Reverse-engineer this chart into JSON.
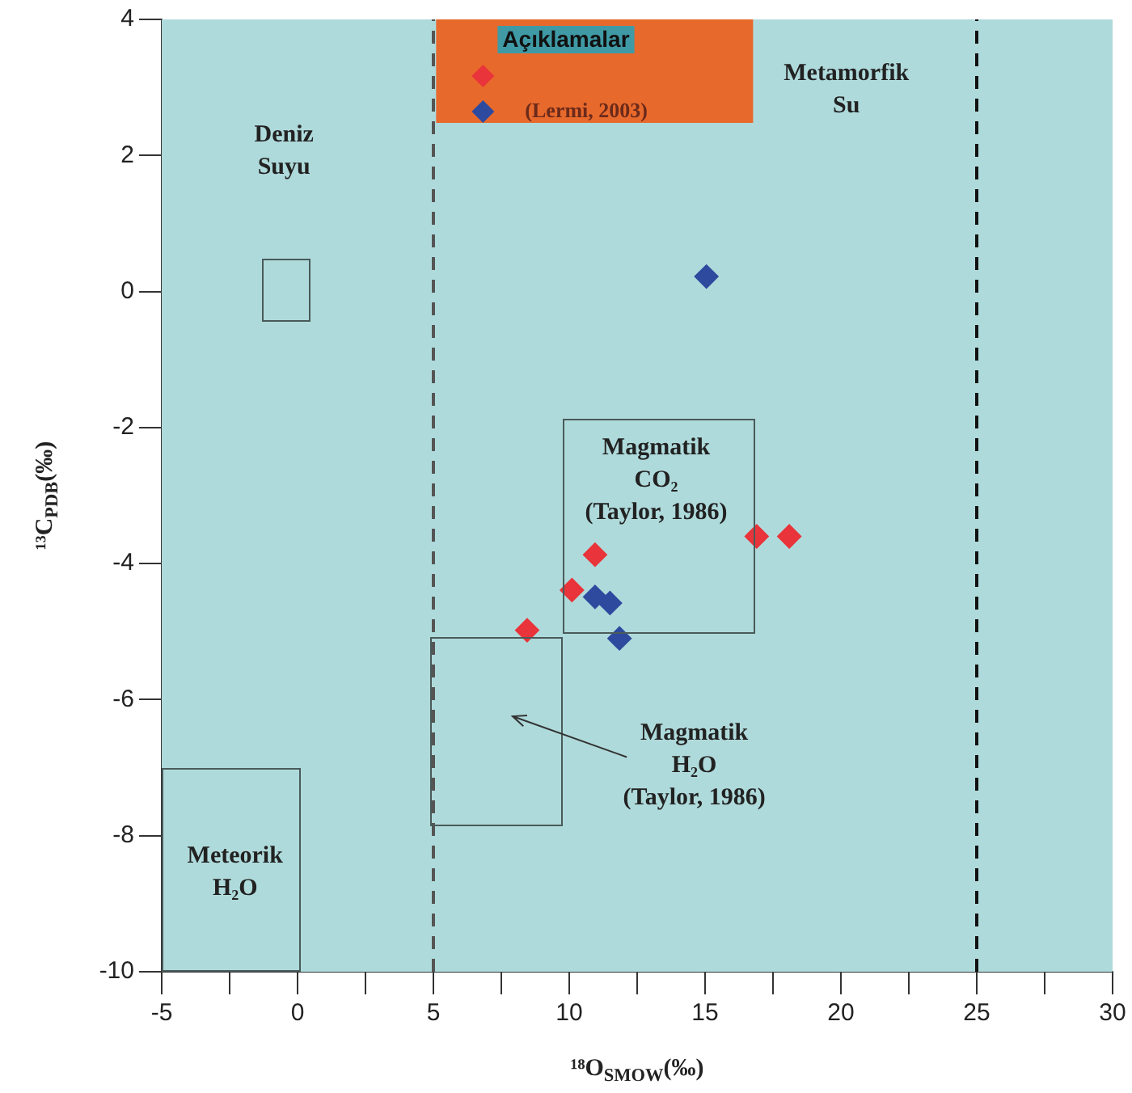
{
  "chart_data": {
    "type": "scatter",
    "xlabel": "¹⁸O$_{SMOW}$(‰)",
    "ylabel": "¹³C$_{PDB}$(‰)",
    "legend_title": "Açıklamalar",
    "legend": "top",
    "xlim": [
      -5,
      30
    ],
    "xticks": [
      -5,
      {
        "value": -2.5,
        "label": null
      },
      0,
      {
        "value": 2.5,
        "label": null
      },
      5,
      {
        "value": 7.5,
        "label": null
      },
      10,
      {
        "value": 12.5,
        "label": null
      },
      15,
      {
        "value": 17.5,
        "label": null
      },
      20,
      {
        "value": 22.5,
        "label": null
      },
      25,
      {
        "value": 27.5,
        "label": null
      },
      30
    ],
    "ylim": [
      -10,
      4
    ],
    "yticks": [
      -10,
      -8,
      -6,
      -4,
      -2,
      0,
      2,
      4
    ],
    "grid": false,
    "marker": "diamond",
    "series": [
      {
        "type": "scatter",
        "color": "#e8343a",
        "x": [
          8.45,
          10.1,
          10.95,
          16.9,
          18.1
        ],
        "values": [
          -4.98,
          -4.39,
          -3.87,
          -3.6,
          -3.6
        ]
      },
      {
        "type": "scatter",
        "name": "(Lermi, 2003)",
        "color": "#2e4a9e",
        "x": [
          15.05,
          10.95,
          11.5,
          11.85
        ],
        "values": [
          0.22,
          -4.49,
          -4.58,
          -5.1
        ]
      }
    ],
    "ref_lines": [
      {
        "axis": "x",
        "value": 5,
        "color": "#555555",
        "line_style": "dashed"
      },
      {
        "axis": "x",
        "value": 25,
        "color": "#111111",
        "line_style": "dashed"
      }
    ],
    "annotations": [
      "Deniz\nSuyu",
      "Metamorfik\nSu",
      "Magmatik\nCO₂\n(Taylor, 1986)",
      "Magmatik\nH₂O\n(Taylor, 1986)",
      "Meteorik\nH₂O"
    ]
  }
}
